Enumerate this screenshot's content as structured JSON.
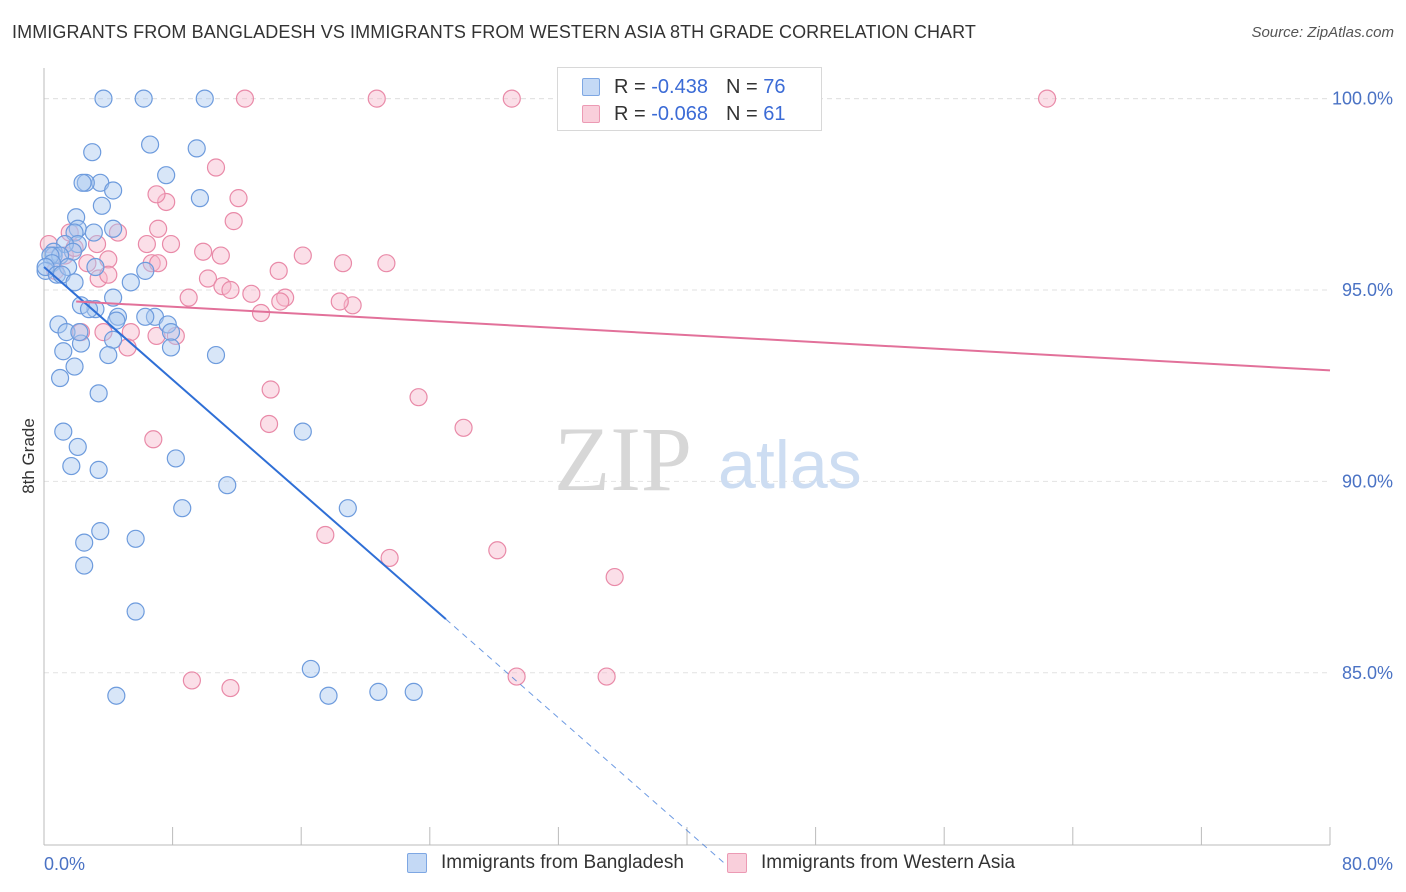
{
  "title": "IMMIGRANTS FROM BANGLADESH VS IMMIGRANTS FROM WESTERN ASIA 8TH GRADE CORRELATION CHART",
  "source": "Source: ZipAtlas.com",
  "watermark": {
    "zip": "ZIP",
    "atlas": "atlas"
  },
  "legend": {
    "rows": [
      {
        "r_label": "R =",
        "r_value": "-0.438",
        "n_label": "N =",
        "n_value": "76",
        "color": "#a9c8f0"
      },
      {
        "r_label": "R =",
        "r_value": "-0.068",
        "n_label": "N =",
        "n_value": "61",
        "color": "#f6b8cb"
      }
    ]
  },
  "colors": {
    "blue_fill": "#a9c8f0",
    "blue_stroke": "#6d9bdd",
    "blue_line": "#2f6fd6",
    "pink_fill": "#f6b8cb",
    "pink_stroke": "#e98aa8",
    "pink_line": "#e2719a",
    "grid": "#e2e2e2",
    "tick_label": "#4a72c4"
  },
  "chart_data": {
    "type": "scatter",
    "title": "IMMIGRANTS FROM BANGLADESH VS IMMIGRANTS FROM WESTERN ASIA 8TH GRADE CORRELATION CHART",
    "xlabel": "",
    "ylabel": "8th Grade",
    "xlim": [
      0,
      80
    ],
    "ylim": [
      80.5,
      100.8
    ],
    "x_tick_labels": [
      "0.0%",
      "80.0%"
    ],
    "y_ticks": [
      85,
      90,
      95,
      100
    ],
    "y_tick_labels": [
      "85.0%",
      "90.0%",
      "95.0%",
      "100.0%"
    ],
    "grid": true,
    "series": [
      {
        "name": "Immigrants from Bangladesh",
        "color": "#a9c8f0",
        "r": -0.438,
        "n": 76,
        "trend": {
          "x": [
            0.0,
            25.0
          ],
          "y": [
            95.6,
            86.4
          ],
          "dashed_to": [
            42.5,
            80.0
          ]
        },
        "x": [
          3.7,
          6.2,
          10.0,
          3.0,
          6.6,
          9.5,
          3.5,
          2.6,
          7.6,
          4.3,
          3.6,
          9.7,
          2.0,
          4.3,
          2.1,
          3.1,
          1.9,
          2.1,
          1.3,
          0.6,
          1.8,
          0.6,
          1.0,
          0.4,
          0.5,
          0.1,
          0.1,
          6.3,
          3.2,
          0.8,
          1.5,
          1.1,
          1.9,
          4.6,
          4.5,
          3.2,
          6.9,
          6.3,
          0.9,
          7.7,
          2.3,
          7.9,
          1.4,
          4.3,
          7.9,
          10.7,
          2.3,
          1.2,
          4.0,
          1.9,
          3.4,
          1.0,
          1.2,
          2.1,
          1.7,
          3.4,
          8.2,
          16.1,
          11.4,
          8.6,
          18.9,
          3.5,
          2.5,
          5.7,
          2.5,
          5.7,
          16.6,
          20.8,
          4.5,
          23.0,
          17.7,
          2.2,
          4.3,
          2.8,
          5.4,
          2.4
        ],
        "y": [
          100.0,
          100.0,
          100.0,
          98.6,
          98.8,
          98.7,
          97.8,
          97.8,
          98.0,
          97.6,
          97.2,
          97.4,
          96.9,
          96.6,
          96.6,
          96.5,
          96.5,
          96.2,
          96.2,
          96.0,
          96.0,
          95.9,
          95.9,
          95.9,
          95.7,
          95.5,
          95.6,
          95.5,
          95.6,
          95.4,
          95.6,
          95.4,
          95.2,
          94.3,
          94.2,
          94.5,
          94.3,
          94.3,
          94.1,
          94.1,
          94.6,
          93.9,
          93.9,
          93.7,
          93.5,
          93.3,
          93.6,
          93.4,
          93.3,
          93.0,
          92.3,
          92.7,
          91.3,
          90.9,
          90.4,
          90.3,
          90.6,
          91.3,
          89.9,
          89.3,
          89.3,
          88.7,
          88.4,
          88.5,
          87.8,
          86.6,
          85.1,
          84.5,
          84.4,
          84.5,
          84.4,
          93.9,
          94.8,
          94.5,
          95.2,
          97.8
        ]
      },
      {
        "name": "Immigrants from Western Asia",
        "color": "#f6b8cb",
        "r": -0.068,
        "n": 61,
        "trend": {
          "x": [
            2.0,
            80.0
          ],
          "y": [
            94.7,
            92.9
          ]
        },
        "x": [
          12.5,
          20.7,
          29.1,
          39.3,
          62.4,
          10.7,
          7.6,
          7.0,
          12.1,
          7.1,
          11.8,
          0.3,
          1.6,
          3.3,
          4.6,
          6.4,
          7.9,
          9.9,
          11.0,
          10.2,
          14.6,
          1.3,
          2.7,
          4.0,
          0.7,
          3.4,
          6.7,
          4.0,
          7.1,
          1.9,
          16.1,
          18.6,
          21.3,
          9.0,
          12.9,
          11.1,
          11.6,
          13.5,
          15.0,
          14.7,
          19.2,
          18.4,
          3.7,
          5.4,
          5.2,
          8.2,
          7.0,
          2.3,
          14.1,
          14.0,
          23.3,
          26.1,
          6.8,
          21.5,
          17.5,
          28.2,
          35.0,
          29.4,
          9.2,
          11.6,
          35.5
        ],
        "y": [
          100.0,
          100.0,
          100.0,
          100.0,
          100.0,
          98.2,
          97.3,
          97.5,
          97.4,
          96.6,
          96.8,
          96.2,
          96.5,
          96.2,
          96.5,
          96.2,
          96.2,
          96.0,
          95.9,
          95.3,
          95.5,
          95.9,
          95.7,
          95.8,
          95.5,
          95.3,
          95.7,
          95.4,
          95.7,
          96.1,
          95.9,
          95.7,
          95.7,
          94.8,
          94.9,
          95.1,
          95.0,
          94.4,
          94.8,
          94.7,
          94.6,
          94.7,
          93.9,
          93.9,
          93.5,
          93.8,
          93.8,
          93.9,
          92.4,
          91.5,
          92.2,
          91.4,
          91.1,
          88.0,
          88.6,
          88.2,
          84.9,
          84.9,
          84.8,
          84.6,
          87.5
        ]
      }
    ]
  }
}
